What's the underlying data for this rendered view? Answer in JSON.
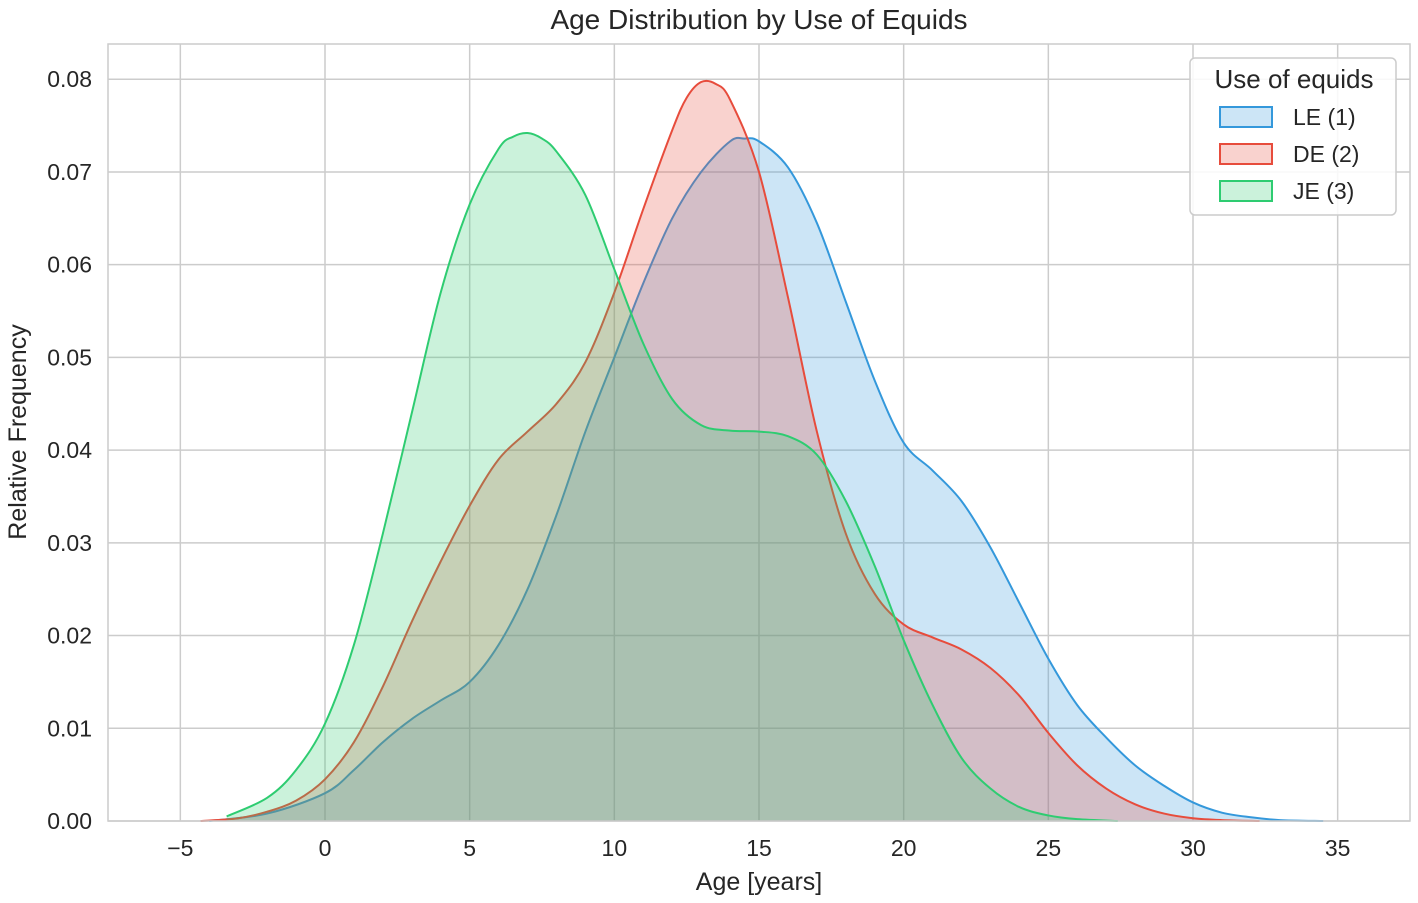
{
  "chart_data": {
    "type": "area",
    "title": "Age Distribution by Use of Equids",
    "xlabel": "Age [years]",
    "ylabel": "Relative Frequency",
    "xlim": [
      -7.5,
      37.5
    ],
    "ylim": [
      0,
      0.0838
    ],
    "xticks": [
      -5,
      0,
      5,
      10,
      15,
      20,
      25,
      30,
      35
    ],
    "xtick_labels": [
      "−5",
      "0",
      "5",
      "10",
      "15",
      "20",
      "25",
      "30",
      "35"
    ],
    "yticks": [
      0,
      0.01,
      0.02,
      0.03,
      0.04,
      0.05,
      0.06,
      0.07,
      0.08
    ],
    "ytick_labels": [
      "0.00",
      "0.01",
      "0.02",
      "0.03",
      "0.04",
      "0.05",
      "0.06",
      "0.07",
      "0.08"
    ],
    "grid": true,
    "legend": {
      "title": "Use of equids",
      "position": "top-right"
    },
    "series": [
      {
        "name": "LE (1)",
        "color": "#3498db",
        "fill_opacity": 0.25,
        "x": [
          -4,
          -2,
          0,
          1,
          2,
          3,
          4,
          5,
          6,
          7,
          8,
          9,
          10,
          11,
          12,
          13,
          14,
          14.5,
          15,
          16,
          17,
          18,
          19,
          20,
          21,
          22,
          23,
          24,
          25,
          26,
          27,
          28,
          29,
          30,
          31,
          32,
          33,
          34.5
        ],
        "y": [
          0.0,
          0.0008,
          0.003,
          0.0055,
          0.0085,
          0.011,
          0.013,
          0.015,
          0.019,
          0.025,
          0.033,
          0.042,
          0.05,
          0.058,
          0.065,
          0.07,
          0.0733,
          0.0736,
          0.0733,
          0.0705,
          0.0645,
          0.056,
          0.0475,
          0.0408,
          0.0378,
          0.0345,
          0.0295,
          0.0235,
          0.0175,
          0.0125,
          0.009,
          0.006,
          0.0038,
          0.002,
          0.0009,
          0.0004,
          0.0001,
          0.0
        ]
      },
      {
        "name": "DE (2)",
        "color": "#e74c3c",
        "fill_opacity": 0.25,
        "x": [
          -4.3,
          -3,
          -2,
          -1,
          0,
          1,
          2,
          3,
          4,
          5,
          6,
          7,
          8,
          9,
          10,
          11,
          12,
          12.5,
          13,
          13.5,
          14,
          15,
          16,
          17,
          18,
          19,
          20,
          21,
          22,
          23,
          24,
          25,
          26,
          27,
          28,
          29,
          30,
          31,
          32.3
        ],
        "y": [
          0.0,
          0.0003,
          0.001,
          0.0022,
          0.0045,
          0.0085,
          0.0145,
          0.0215,
          0.028,
          0.034,
          0.039,
          0.042,
          0.045,
          0.0495,
          0.057,
          0.066,
          0.0745,
          0.078,
          0.0797,
          0.0795,
          0.0778,
          0.07,
          0.0565,
          0.042,
          0.031,
          0.0245,
          0.0212,
          0.0198,
          0.0185,
          0.0165,
          0.0135,
          0.0095,
          0.006,
          0.0035,
          0.0018,
          0.0008,
          0.0003,
          0.0001,
          0.0
        ]
      },
      {
        "name": "JE (3)",
        "color": "#2ecc71",
        "fill_opacity": 0.25,
        "x": [
          -3.4,
          -2,
          -1,
          0,
          1,
          2,
          3,
          4,
          5,
          6,
          6.5,
          7,
          7.5,
          8,
          9,
          10,
          11,
          12,
          13,
          14,
          15,
          16,
          17,
          18,
          19,
          20,
          21,
          22,
          23,
          24,
          25,
          26,
          27.4
        ],
        "y": [
          0.0005,
          0.0025,
          0.0055,
          0.0105,
          0.019,
          0.031,
          0.044,
          0.057,
          0.0665,
          0.0725,
          0.0738,
          0.0742,
          0.0736,
          0.0722,
          0.0675,
          0.0595,
          0.0515,
          0.0455,
          0.0427,
          0.0421,
          0.042,
          0.0415,
          0.0395,
          0.0345,
          0.0275,
          0.0195,
          0.0125,
          0.0068,
          0.0035,
          0.0015,
          0.0006,
          0.0002,
          0.0
        ]
      }
    ]
  }
}
